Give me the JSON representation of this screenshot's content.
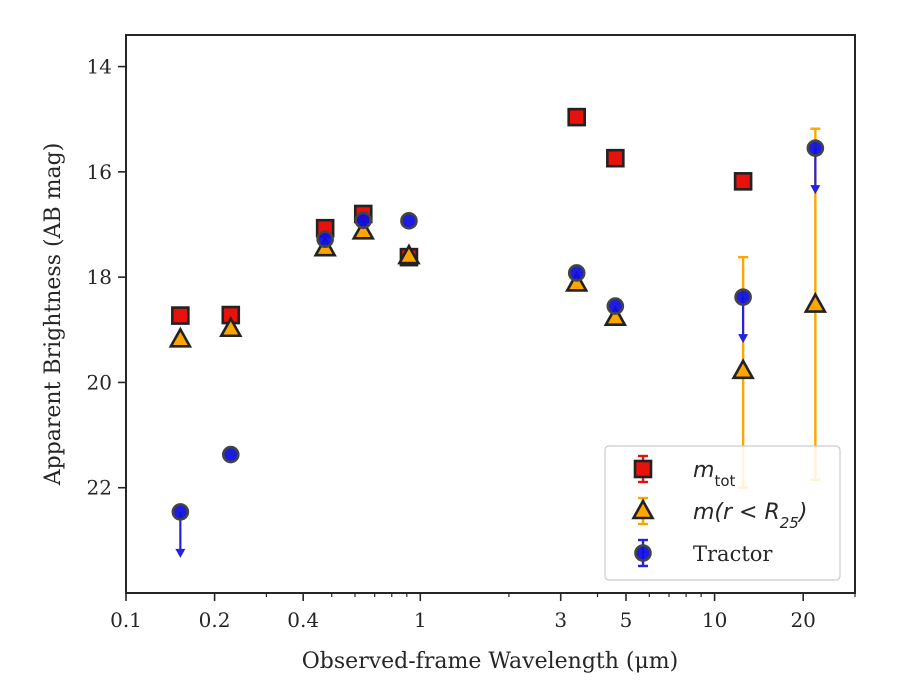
{
  "chart_data": {
    "type": "scatter",
    "title": "",
    "xlabel": "Observed-frame Wavelength (μm)",
    "ylabel": "Apparent Brightness (AB mag)",
    "xscale": "log",
    "xlim": [
      0.1,
      30
    ],
    "ylim": [
      24,
      13.4
    ],
    "y_inverted": true,
    "x_ticks": [
      {
        "value": 0.1,
        "label": "0.1"
      },
      {
        "value": 0.2,
        "label": "0.2"
      },
      {
        "value": 0.4,
        "label": "0.4"
      },
      {
        "value": 1,
        "label": "1"
      },
      {
        "value": 3,
        "label": "3"
      },
      {
        "value": 5,
        "label": "5"
      },
      {
        "value": 10,
        "label": "10"
      },
      {
        "value": 20,
        "label": "20"
      }
    ],
    "y_ticks": [
      {
        "value": 14,
        "label": "14"
      },
      {
        "value": 16,
        "label": "16"
      },
      {
        "value": 18,
        "label": "18"
      },
      {
        "value": 20,
        "label": "20"
      },
      {
        "value": 22,
        "label": "22"
      }
    ],
    "grid": false,
    "legend_position": "lower-right",
    "series": [
      {
        "name": "m_tot",
        "legend_main": "m",
        "legend_sub": "tot",
        "marker": "square",
        "color": "#e8120c",
        "edge_color": "#222222",
        "err_color": "#e8120c",
        "points": [
          {
            "x": 0.153,
            "y": 18.73
          },
          {
            "x": 0.227,
            "y": 18.72
          },
          {
            "x": 0.475,
            "y": 17.07
          },
          {
            "x": 0.64,
            "y": 16.8
          },
          {
            "x": 0.915,
            "y": 17.62
          },
          {
            "x": 3.4,
            "y": 14.96
          },
          {
            "x": 4.6,
            "y": 15.74
          },
          {
            "x": 12.5,
            "y": 16.18
          }
        ]
      },
      {
        "name": "m(r < R_25)",
        "legend_main": "m(r < R",
        "legend_sub": "25",
        "legend_tail": ")",
        "marker": "triangle",
        "color": "#ffa500",
        "edge_color": "#222222",
        "err_color": "#ffa500",
        "points": [
          {
            "x": 0.153,
            "y": 19.18
          },
          {
            "x": 0.227,
            "y": 18.98
          },
          {
            "x": 0.475,
            "y": 17.45
          },
          {
            "x": 0.64,
            "y": 17.13
          },
          {
            "x": 0.915,
            "y": 17.6
          },
          {
            "x": 3.4,
            "y": 18.12
          },
          {
            "x": 4.6,
            "y": 18.77
          },
          {
            "x": 12.5,
            "y": 19.78,
            "err_low": 17.62,
            "err_high": 22.0
          },
          {
            "x": 22.0,
            "y": 18.52,
            "err_low": 15.18,
            "err_high": 21.85
          }
        ]
      },
      {
        "name": "Tractor",
        "legend_main": "Tractor",
        "marker": "circle",
        "color": "#1010e0",
        "edge_color": "#444444",
        "err_color": "#2222e0",
        "points": [
          {
            "x": 0.153,
            "y": 22.46,
            "upper_limit": true
          },
          {
            "x": 0.227,
            "y": 21.37
          },
          {
            "x": 0.475,
            "y": 17.28
          },
          {
            "x": 0.64,
            "y": 16.92
          },
          {
            "x": 0.915,
            "y": 16.93
          },
          {
            "x": 3.4,
            "y": 17.92
          },
          {
            "x": 4.6,
            "y": 18.55
          },
          {
            "x": 12.5,
            "y": 18.38,
            "upper_limit": true
          },
          {
            "x": 22.0,
            "y": 15.55,
            "upper_limit": true
          }
        ]
      }
    ]
  }
}
